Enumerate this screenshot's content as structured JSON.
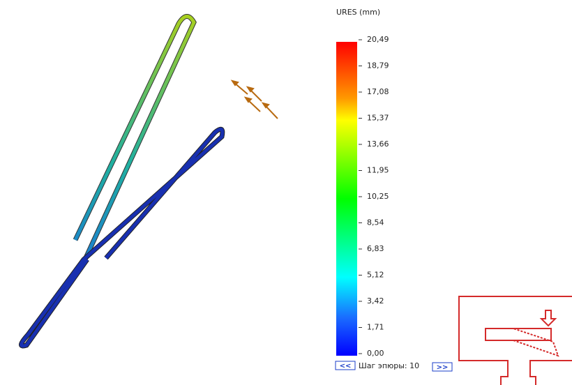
{
  "legend": {
    "title": "URES (mm)",
    "labels": [
      "20,49",
      "18,79",
      "17,08",
      "15,37",
      "13,66",
      "11,95",
      "10,25",
      "8,54",
      "6,83",
      "5,12",
      "3,42",
      "1,71",
      "0,00"
    ]
  },
  "step": {
    "prev": "<<",
    "text": "Шаг эпюры: 10",
    "next": ">>"
  }
}
